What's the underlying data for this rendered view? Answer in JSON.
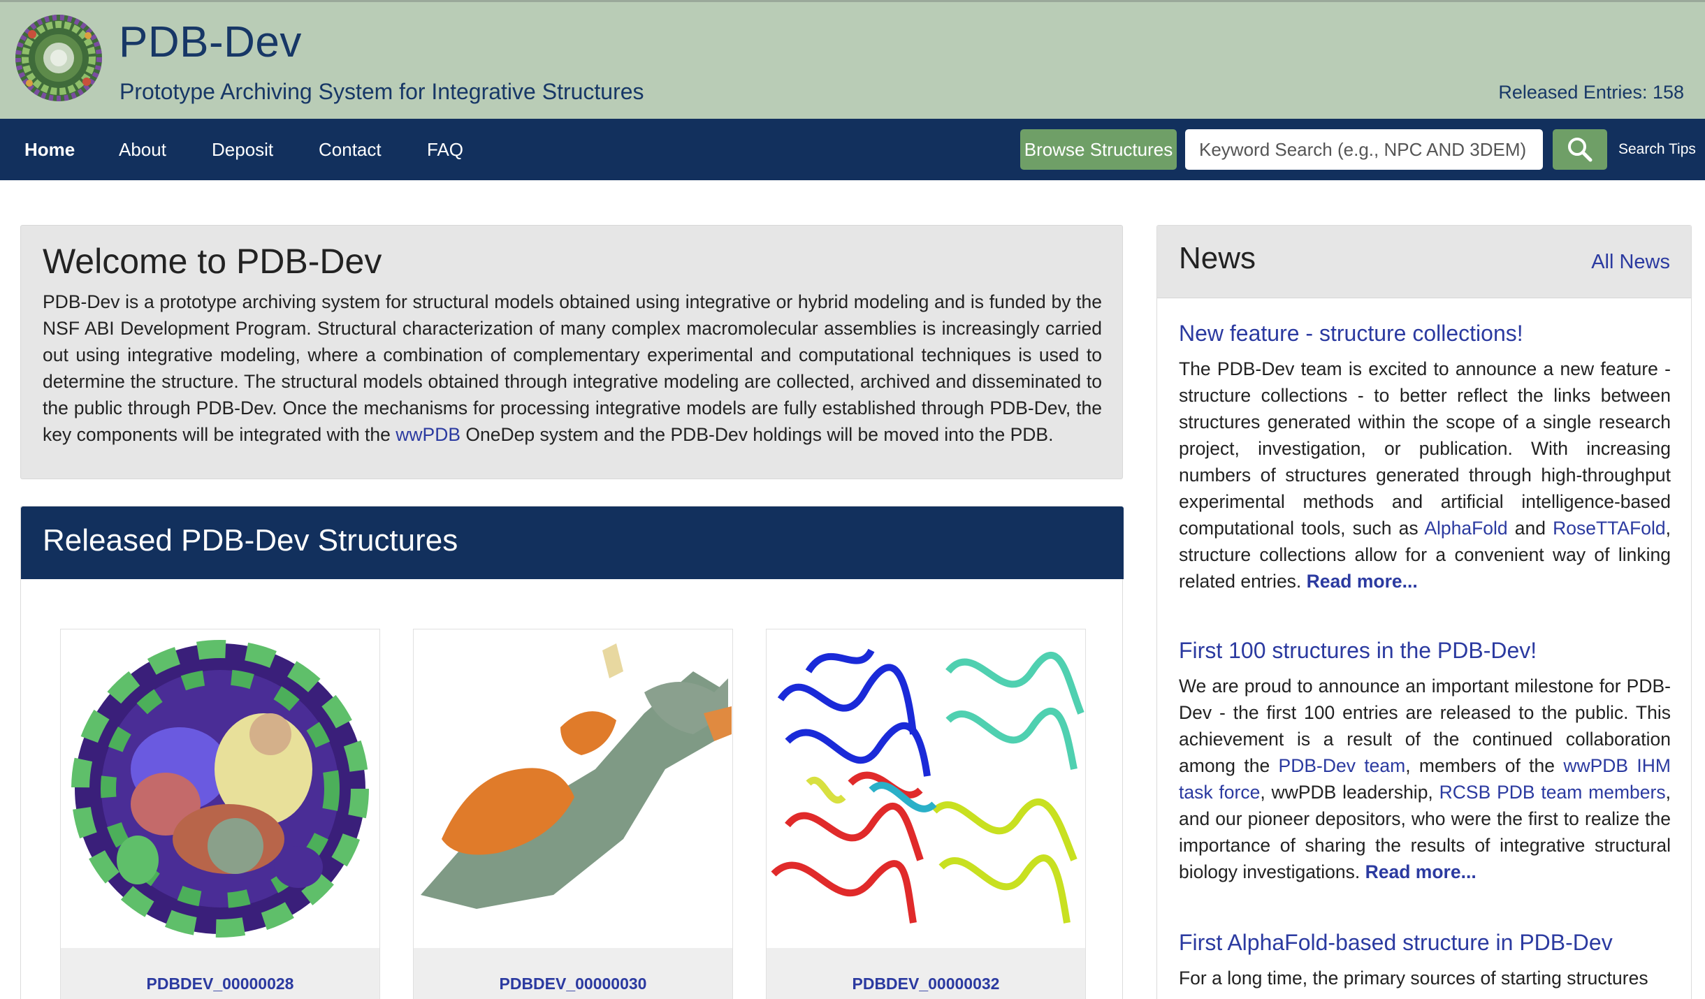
{
  "header": {
    "title": "PDB-Dev",
    "subtitle": "Prototype Archiving System for Integrative Structures",
    "released_entries": "Released Entries: 158"
  },
  "nav": {
    "items": [
      "Home",
      "About",
      "Deposit",
      "Contact",
      "FAQ"
    ],
    "active": "Home",
    "browse_button": "Browse Structures",
    "search_placeholder": "Keyword Search (e.g., NPC AND 3DEM)",
    "search_tips": "Search Tips",
    "search_icon": "magnifier-icon"
  },
  "welcome": {
    "title": "Welcome to PDB-Dev",
    "text_before_link": "PDB-Dev is a prototype archiving system for structural models obtained using integrative or hybrid modeling and is funded by the NSF ABI Development Program. Structural characterization of many complex macromolecular assemblies is increasingly carried out using integrative modeling, where a combination of complementary experimental and computational techniques is used to determine the structure. The structural models obtained through integrative modeling are collected, archived and disseminated to the public through PDB-Dev. Once the mechanisms for processing integrative models are fully established through PDB-Dev, the key components will be integrated with the ",
    "link": "wwPDB",
    "text_after_link": " OneDep system and the PDB-Dev holdings will be moved into the PDB."
  },
  "released": {
    "title": "Released PDB-Dev Structures",
    "cards": [
      {
        "id": "PDBDEV_00000028"
      },
      {
        "id": "PDBDEV_00000030"
      },
      {
        "id": "PDBDEV_00000032"
      }
    ]
  },
  "news": {
    "title": "News",
    "all_news": "All News",
    "read_more": "Read more...",
    "items": [
      {
        "title": "New feature - structure collections!",
        "t1": "The PDB-Dev team is excited to announce a new feature - structure collections - to better reflect the links between structures generated within the scope of a single research project, investigation, or publication. With increasing numbers of structures generated through high-throughput experimental methods and artificial intelligence-based computational tools, such as ",
        "l1": "AlphaFold",
        "t2": " and ",
        "l2": "RoseTTAFold",
        "t3": ", structure collections allow for a convenient way of linking related entries. "
      },
      {
        "title": "First 100 structures in the PDB-Dev!",
        "t1": "We are proud to announce an important milestone for PDB-Dev - the first 100 entries are released to the public. This achievement is a result of the continued collaboration among the ",
        "l1": "PDB-Dev team",
        "t2": ", members of the ",
        "l2": "wwPDB IHM task force",
        "t3": ", wwPDB leadership, ",
        "l3": "RCSB PDB team members",
        "t4": ", and our pioneer depositors, who were the first to realize the importance of sharing the results of integrative structural biology investigations. "
      },
      {
        "title": "First AlphaFold-based structure in PDB-Dev",
        "t1": "For a long time, the primary sources of starting structures"
      }
    ]
  },
  "colors": {
    "header_bg": "#b9ccb6",
    "nav_bg": "#12305d",
    "accent_green": "#6f9f67",
    "link": "#2b3aa0",
    "title_blue": "#173766"
  }
}
